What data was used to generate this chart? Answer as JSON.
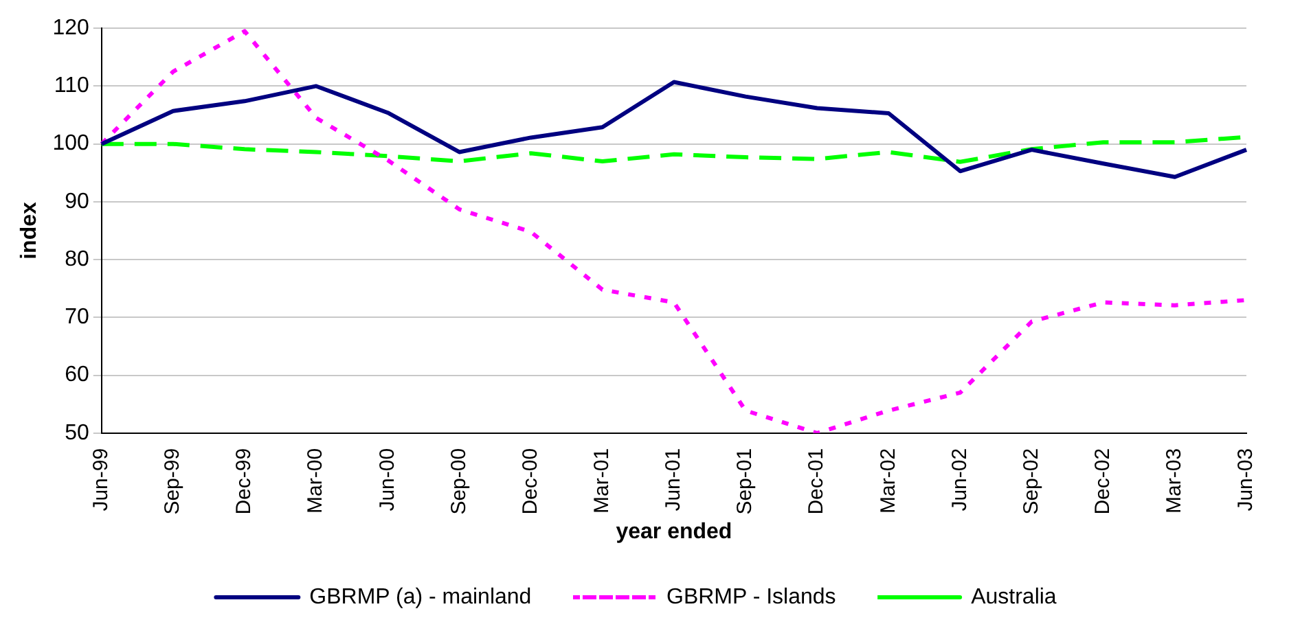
{
  "chart_data": {
    "type": "line",
    "xlabel": "year ended",
    "ylabel": "index",
    "categories": [
      "Jun-99",
      "Sep-99",
      "Dec-99",
      "Mar-00",
      "Jun-00",
      "Sep-00",
      "Dec-00",
      "Mar-01",
      "Jun-01",
      "Sep-01",
      "Dec-01",
      "Mar-02",
      "Jun-02",
      "Sep-02",
      "Dec-02",
      "Mar-03",
      "Jun-03"
    ],
    "series": [
      {
        "name": "GBRMP (a) - mainland",
        "color": "#000080",
        "line_style": "solid",
        "values": [
          100,
          105.7,
          107.4,
          110,
          105.4,
          98.6,
          101.1,
          102.9,
          110.7,
          108.2,
          106.2,
          105.3,
          95.3,
          99,
          96.6,
          94.3,
          99
        ]
      },
      {
        "name": "GBRMP - Islands",
        "color": "#ff00ff",
        "line_style": "dotted",
        "values": [
          100,
          112.5,
          119.5,
          104.5,
          97.2,
          88.7,
          84.8,
          74.8,
          72.6,
          53.9,
          50,
          53.9,
          57,
          69.3,
          72.6,
          72.1,
          73
        ]
      },
      {
        "name": "Australia",
        "color": "#00ff00",
        "line_style": "dashed",
        "values": [
          100,
          100,
          99.1,
          98.6,
          97.9,
          97,
          98.4,
          97,
          98.2,
          97.7,
          97.4,
          98.6,
          96.9,
          99.1,
          100.3,
          100.3,
          101.2
        ]
      }
    ],
    "ylim": [
      50,
      120
    ],
    "yticks": [
      50,
      60,
      70,
      80,
      90,
      100,
      110,
      120
    ],
    "grid": "y",
    "legend": "bottom",
    "marker": "none"
  }
}
